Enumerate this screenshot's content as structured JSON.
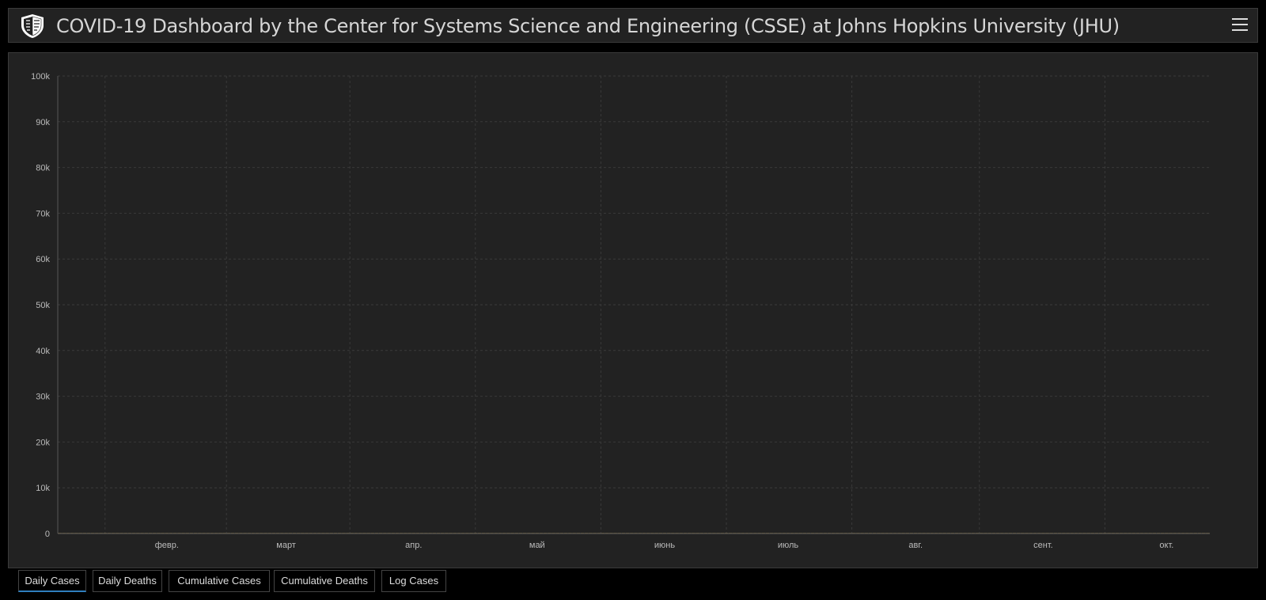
{
  "header": {
    "title": "COVID-19 Dashboard by the Center for Systems Science and Engineering (CSSE) at Johns Hopkins University (JHU)",
    "logo_icon": "shield-logo-icon",
    "menu_icon": "hamburger-menu-icon"
  },
  "tabs": [
    {
      "label": "Daily Cases",
      "active": true
    },
    {
      "label": "Daily Deaths",
      "active": false
    },
    {
      "label": "Cumulative Cases",
      "active": false
    },
    {
      "label": "Cumulative Deaths",
      "active": false
    },
    {
      "label": "Log Cases",
      "active": false
    }
  ],
  "colors": {
    "bar": "#ffaa00",
    "background": "#222222",
    "grid": "#3a3a3a"
  },
  "chart_data": {
    "type": "bar",
    "grid": true,
    "ylim": [
      0,
      100000
    ],
    "yticks": [
      {
        "value": 0,
        "label": "0"
      },
      {
        "value": 10000,
        "label": "10k"
      },
      {
        "value": 20000,
        "label": "20k"
      },
      {
        "value": 30000,
        "label": "30k"
      },
      {
        "value": 40000,
        "label": "40k"
      },
      {
        "value": 50000,
        "label": "50k"
      },
      {
        "value": 60000,
        "label": "60k"
      },
      {
        "value": 70000,
        "label": "70k"
      },
      {
        "value": 80000,
        "label": "80k"
      },
      {
        "value": 90000,
        "label": "90k"
      },
      {
        "value": 100000,
        "label": "100k"
      }
    ],
    "xticks": [
      {
        "index": 26,
        "label": "февр."
      },
      {
        "index": 55,
        "label": "март"
      },
      {
        "index": 86,
        "label": "апр."
      },
      {
        "index": 116,
        "label": "май"
      },
      {
        "index": 147,
        "label": "июнь"
      },
      {
        "index": 177,
        "label": "июль"
      },
      {
        "index": 208,
        "label": "авг."
      },
      {
        "index": 239,
        "label": "сент."
      },
      {
        "index": 269,
        "label": "окт."
      }
    ],
    "values": [
      100,
      100,
      100,
      100,
      100,
      100,
      100,
      100,
      100,
      100,
      100,
      100,
      100,
      100,
      100,
      100,
      100,
      100,
      100,
      100,
      100,
      100,
      100,
      100,
      100,
      100,
      100,
      100,
      100,
      100,
      100,
      100,
      100,
      100,
      100,
      100,
      100,
      100,
      100,
      100,
      100,
      100,
      100,
      100,
      100,
      100,
      100,
      100,
      100,
      100,
      100,
      100,
      100,
      100,
      100,
      100,
      100,
      100,
      100,
      100,
      100,
      100,
      100,
      100,
      100,
      100,
      100,
      100,
      100,
      100,
      100,
      100,
      100,
      100,
      100,
      100,
      100,
      100,
      100,
      100,
      100,
      100,
      100,
      100,
      100,
      100,
      100,
      100,
      100,
      100,
      100,
      100,
      100,
      100,
      100,
      100,
      100,
      100,
      100,
      100,
      100,
      100,
      100,
      100,
      100,
      100,
      100,
      100,
      100,
      100,
      100,
      100,
      100,
      100,
      100,
      100,
      100,
      100,
      100,
      100,
      100,
      100,
      100,
      100,
      100,
      100,
      100,
      100,
      100,
      100,
      100,
      100,
      100,
      100,
      100,
      100,
      100,
      100,
      100,
      100,
      100,
      100,
      100,
      100,
      100,
      100,
      100,
      100,
      100,
      100,
      100,
      100,
      100,
      100,
      100,
      100,
      100,
      100,
      100,
      100,
      100,
      100,
      100,
      100,
      100,
      100,
      100,
      100,
      100,
      100,
      100,
      100,
      100,
      100,
      100,
      100,
      100,
      100,
      100,
      100,
      100,
      100,
      100,
      100,
      100,
      100,
      100,
      100,
      100,
      100,
      100,
      100,
      100,
      100,
      100,
      100,
      100,
      100,
      100,
      100,
      100,
      100,
      100,
      100,
      100,
      100,
      100,
      100,
      100,
      100,
      100,
      100,
      100,
      100,
      100,
      100,
      100,
      100,
      100,
      100,
      100,
      100,
      100,
      100,
      100,
      100,
      100,
      100,
      100,
      100,
      100,
      100,
      100,
      100,
      100,
      100,
      100,
      100,
      100,
      100,
      100,
      100,
      100,
      100,
      100,
      100,
      100,
      100,
      100,
      100,
      100,
      100,
      100,
      100,
      100,
      100,
      100,
      100,
      100,
      100,
      100,
      100,
      100,
      100,
      100,
      100,
      100,
      100,
      100,
      100,
      100,
      100,
      100,
      100,
      100,
      100,
      100,
      100,
      100,
      100
    ]
  }
}
